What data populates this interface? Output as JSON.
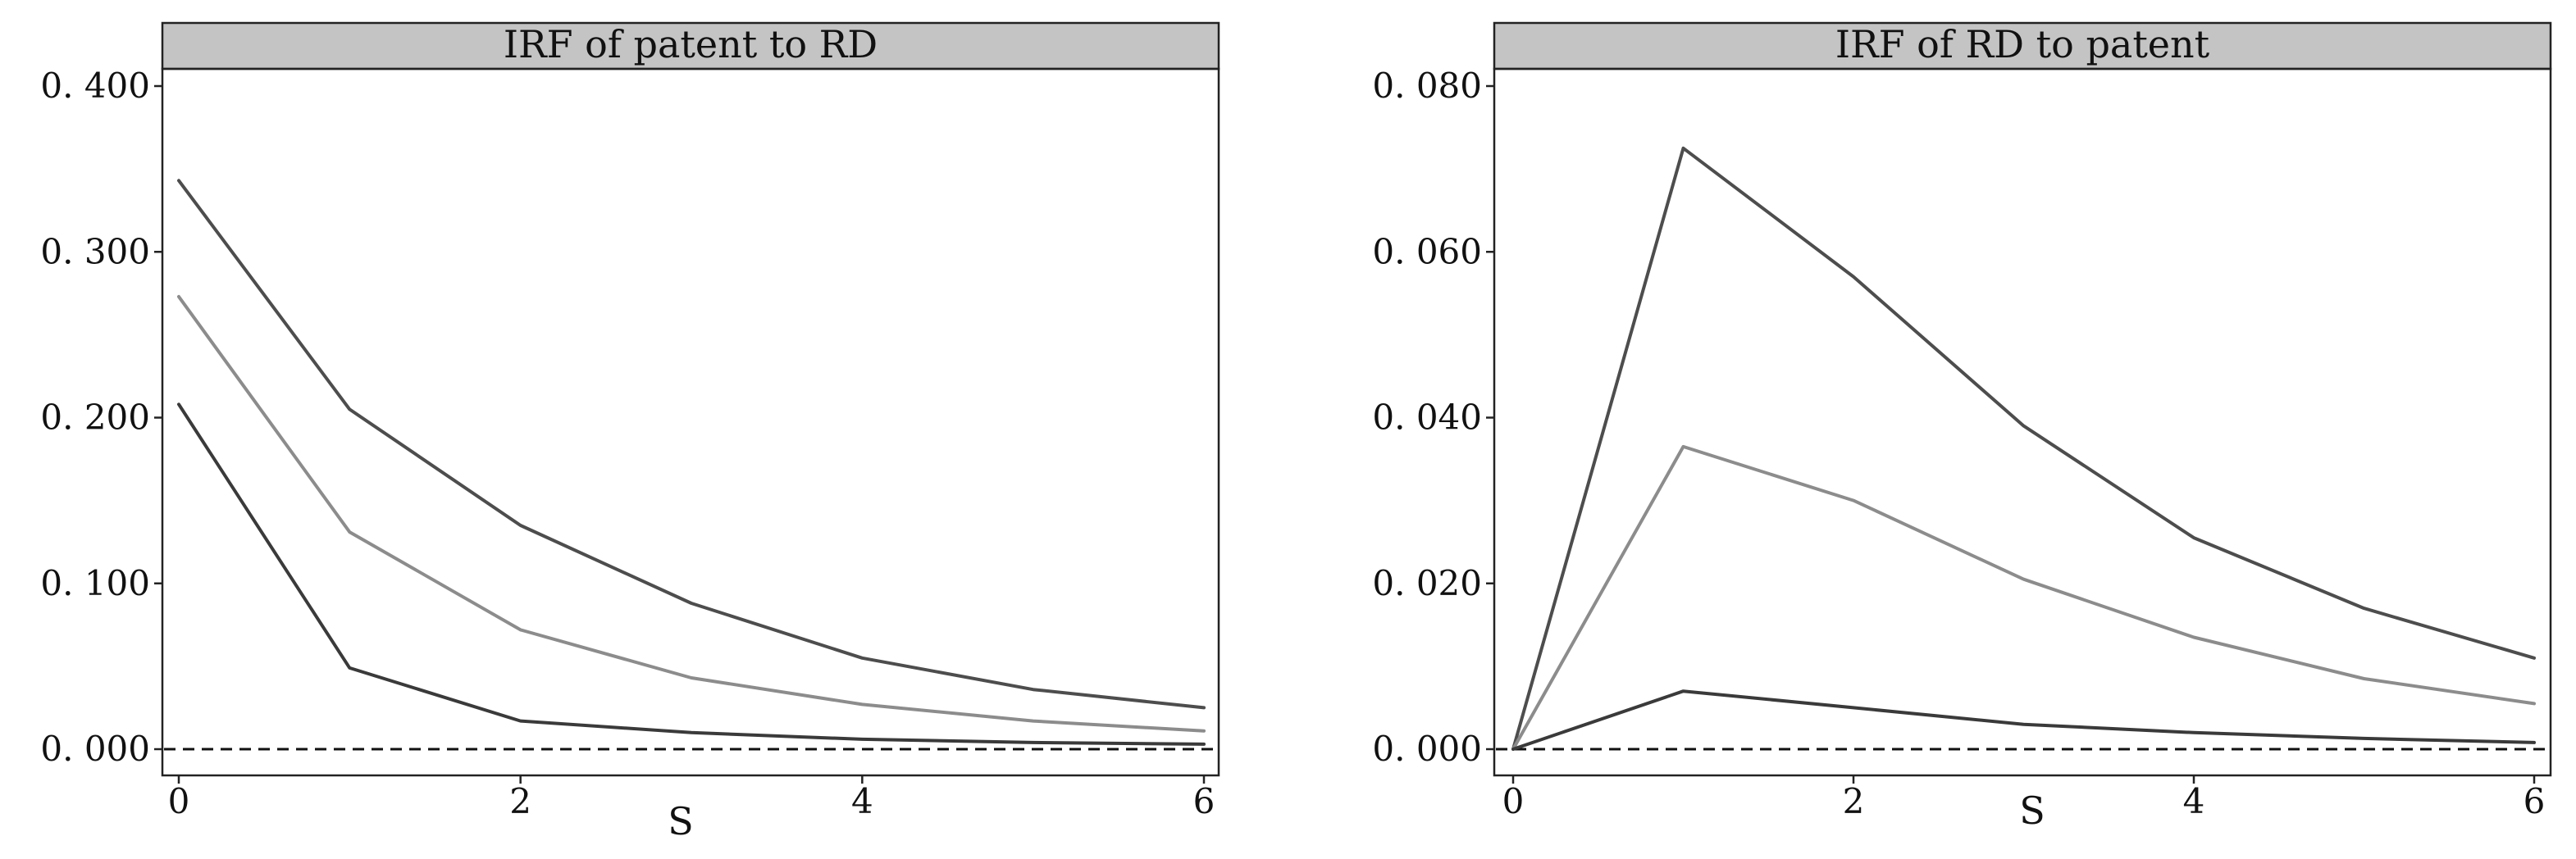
{
  "chart_data": [
    {
      "type": "line",
      "title": "IRF of patent to RD",
      "xlabel": "S",
      "ylabel": "",
      "x": [
        0,
        1,
        2,
        3,
        4,
        5,
        6
      ],
      "xticks": [
        0,
        2,
        4,
        6
      ],
      "xlim": [
        0,
        6
      ],
      "ylim": [
        0,
        0.4
      ],
      "yticks": [
        0,
        0.1,
        0.2,
        0.3,
        0.4
      ],
      "ytick_labels": [
        "0. 000",
        "0. 100",
        "0. 200",
        "0. 300",
        "0. 400"
      ],
      "grid": false,
      "legend": "none",
      "reference_line": {
        "y": 0,
        "style": "dashed"
      },
      "series": [
        {
          "values": [
            0.343,
            0.205,
            0.135,
            0.088,
            0.055,
            0.036,
            0.025
          ],
          "color": "#4d4d4d"
        },
        {
          "values": [
            0.273,
            0.131,
            0.072,
            0.043,
            0.027,
            0.017,
            0.011
          ],
          "color": "#8c8c8c"
        },
        {
          "values": [
            0.208,
            0.049,
            0.017,
            0.01,
            0.006,
            0.004,
            0.003
          ],
          "color": "#3a3a3a"
        }
      ]
    },
    {
      "type": "line",
      "title": "IRF of RD to patent",
      "xlabel": "S",
      "ylabel": "",
      "x": [
        0,
        1,
        2,
        3,
        4,
        5,
        6
      ],
      "xticks": [
        0,
        2,
        4,
        6
      ],
      "xlim": [
        0,
        6
      ],
      "ylim": [
        0,
        0.08
      ],
      "yticks": [
        0,
        0.02,
        0.04,
        0.06,
        0.08
      ],
      "ytick_labels": [
        "0. 000",
        "0. 020",
        "0. 040",
        "0. 060",
        "0. 080"
      ],
      "grid": false,
      "legend": "none",
      "reference_line": {
        "y": 0,
        "style": "dashed"
      },
      "series": [
        {
          "values": [
            0,
            0.0725,
            0.057,
            0.039,
            0.0255,
            0.017,
            0.011
          ],
          "color": "#4d4d4d"
        },
        {
          "values": [
            0,
            0.0365,
            0.03,
            0.0205,
            0.0135,
            0.0085,
            0.0055
          ],
          "color": "#8c8c8c"
        },
        {
          "values": [
            0,
            0.007,
            0.005,
            0.003,
            0.002,
            0.0013,
            0.0008
          ],
          "color": "#3a3a3a"
        }
      ]
    }
  ]
}
